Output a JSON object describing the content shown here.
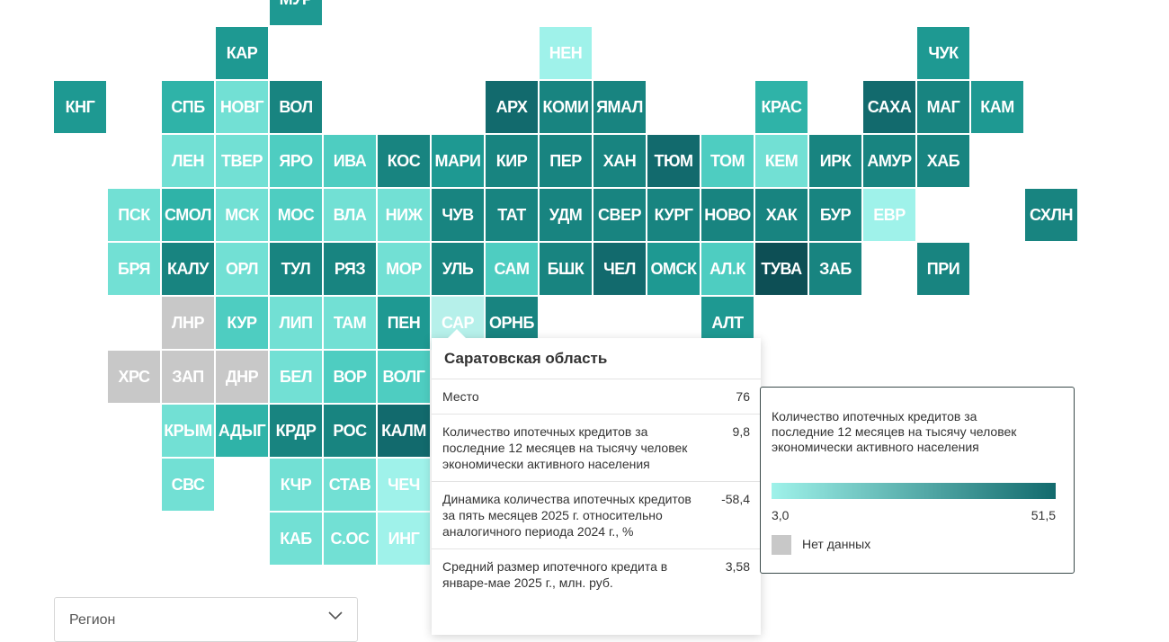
{
  "colors": {
    "bins": [
      "#9ff2ea",
      "#72e0d4",
      "#4ecdc1",
      "#2fb3a8",
      "#1e9992",
      "#188480",
      "#126a6d",
      "#0d4f55"
    ],
    "nodata": "#c8c8c8",
    "selected": "#b6f0ea"
  },
  "tiles": [
    {
      "label": "МУР",
      "col": 5,
      "row": -1,
      "bin": 4
    },
    {
      "label": "КАР",
      "col": 4,
      "row": 0,
      "bin": 4
    },
    {
      "label": "НЕН",
      "col": 10,
      "row": 0,
      "bin": 0
    },
    {
      "label": "ЧУК",
      "col": 17,
      "row": 0,
      "bin": 4
    },
    {
      "label": "КНГ",
      "col": 1,
      "row": 1,
      "bin": 4
    },
    {
      "label": "СПБ",
      "col": 3,
      "row": 1,
      "bin": 3
    },
    {
      "label": "НОВГ",
      "col": 4,
      "row": 1,
      "bin": 1
    },
    {
      "label": "ВОЛ",
      "col": 5,
      "row": 1,
      "bin": 5
    },
    {
      "label": "АРХ",
      "col": 9,
      "row": 1,
      "bin": 6
    },
    {
      "label": "КОМИ",
      "col": 10,
      "row": 1,
      "bin": 5
    },
    {
      "label": "ЯМАЛ",
      "col": 11,
      "row": 1,
      "bin": 5
    },
    {
      "label": "КРАС",
      "col": 14,
      "row": 1,
      "bin": 3
    },
    {
      "label": "САХА",
      "col": 16,
      "row": 1,
      "bin": 6
    },
    {
      "label": "МАГ",
      "col": 17,
      "row": 1,
      "bin": 5
    },
    {
      "label": "КАМ",
      "col": 18,
      "row": 1,
      "bin": 4
    },
    {
      "label": "ЛЕН",
      "col": 3,
      "row": 2,
      "bin": 1
    },
    {
      "label": "ТВЕР",
      "col": 4,
      "row": 2,
      "bin": 1
    },
    {
      "label": "ЯРО",
      "col": 5,
      "row": 2,
      "bin": 2
    },
    {
      "label": "ИВА",
      "col": 6,
      "row": 2,
      "bin": 2
    },
    {
      "label": "КОС",
      "col": 7,
      "row": 2,
      "bin": 5
    },
    {
      "label": "МАРИ",
      "col": 8,
      "row": 2,
      "bin": 4
    },
    {
      "label": "КИР",
      "col": 9,
      "row": 2,
      "bin": 5
    },
    {
      "label": "ПЕР",
      "col": 10,
      "row": 2,
      "bin": 5
    },
    {
      "label": "ХАН",
      "col": 11,
      "row": 2,
      "bin": 5
    },
    {
      "label": "ТЮМ",
      "col": 12,
      "row": 2,
      "bin": 6
    },
    {
      "label": "ТОМ",
      "col": 13,
      "row": 2,
      "bin": 2
    },
    {
      "label": "КЕМ",
      "col": 14,
      "row": 2,
      "bin": 1
    },
    {
      "label": "ИРК",
      "col": 15,
      "row": 2,
      "bin": 5
    },
    {
      "label": "АМУР",
      "col": 16,
      "row": 2,
      "bin": 5
    },
    {
      "label": "ХАБ",
      "col": 17,
      "row": 2,
      "bin": 5
    },
    {
      "label": "ПСК",
      "col": 2,
      "row": 3,
      "bin": 1
    },
    {
      "label": "СМОЛ",
      "col": 3,
      "row": 3,
      "bin": 3
    },
    {
      "label": "МСК",
      "col": 4,
      "row": 3,
      "bin": 1
    },
    {
      "label": "МОС",
      "col": 5,
      "row": 3,
      "bin": 2
    },
    {
      "label": "ВЛА",
      "col": 6,
      "row": 3,
      "bin": 1
    },
    {
      "label": "НИЖ",
      "col": 7,
      "row": 3,
      "bin": 1
    },
    {
      "label": "ЧУВ",
      "col": 8,
      "row": 3,
      "bin": 5
    },
    {
      "label": "ТАТ",
      "col": 9,
      "row": 3,
      "bin": 5
    },
    {
      "label": "УДМ",
      "col": 10,
      "row": 3,
      "bin": 5
    },
    {
      "label": "СВЕР",
      "col": 11,
      "row": 3,
      "bin": 5
    },
    {
      "label": "КУРГ",
      "col": 12,
      "row": 3,
      "bin": 5
    },
    {
      "label": "НОВО",
      "col": 13,
      "row": 3,
      "bin": 5
    },
    {
      "label": "ХАК",
      "col": 14,
      "row": 3,
      "bin": 5
    },
    {
      "label": "БУР",
      "col": 15,
      "row": 3,
      "bin": 5
    },
    {
      "label": "ЕВР",
      "col": 16,
      "row": 3,
      "bin": 0
    },
    {
      "label": "СХЛН",
      "col": 19,
      "row": 3,
      "bin": 5
    },
    {
      "label": "БРЯ",
      "col": 2,
      "row": 4,
      "bin": 1
    },
    {
      "label": "КАЛУ",
      "col": 3,
      "row": 4,
      "bin": 5
    },
    {
      "label": "ОРЛ",
      "col": 4,
      "row": 4,
      "bin": 1
    },
    {
      "label": "ТУЛ",
      "col": 5,
      "row": 4,
      "bin": 5
    },
    {
      "label": "РЯЗ",
      "col": 6,
      "row": 4,
      "bin": 5
    },
    {
      "label": "МОР",
      "col": 7,
      "row": 4,
      "bin": 1
    },
    {
      "label": "УЛЬ",
      "col": 8,
      "row": 4,
      "bin": 5
    },
    {
      "label": "САМ",
      "col": 9,
      "row": 4,
      "bin": 2
    },
    {
      "label": "БШК",
      "col": 10,
      "row": 4,
      "bin": 5
    },
    {
      "label": "ЧЕЛ",
      "col": 11,
      "row": 4,
      "bin": 6
    },
    {
      "label": "ОМСК",
      "col": 12,
      "row": 4,
      "bin": 4
    },
    {
      "label": "АЛ.К",
      "col": 13,
      "row": 4,
      "bin": 2
    },
    {
      "label": "ТУВА",
      "col": 14,
      "row": 4,
      "bin": 7
    },
    {
      "label": "ЗАБ",
      "col": 15,
      "row": 4,
      "bin": 5
    },
    {
      "label": "ПРИ",
      "col": 17,
      "row": 4,
      "bin": 5
    },
    {
      "label": "ЛНР",
      "col": 3,
      "row": 5,
      "bin": -1
    },
    {
      "label": "КУР",
      "col": 4,
      "row": 5,
      "bin": 2
    },
    {
      "label": "ЛИП",
      "col": 5,
      "row": 5,
      "bin": 1
    },
    {
      "label": "ТАМ",
      "col": 6,
      "row": 5,
      "bin": 1
    },
    {
      "label": "ПЕН",
      "col": 7,
      "row": 5,
      "bin": 4
    },
    {
      "label": "САР",
      "col": 8,
      "row": 5,
      "bin": -2
    },
    {
      "label": "ОРНБ",
      "col": 9,
      "row": 5,
      "bin": 5
    },
    {
      "label": "АЛТ",
      "col": 13,
      "row": 5,
      "bin": 4
    },
    {
      "label": "ХРС",
      "col": 2,
      "row": 6,
      "bin": -1
    },
    {
      "label": "ЗАП",
      "col": 3,
      "row": 6,
      "bin": -1
    },
    {
      "label": "ДНР",
      "col": 4,
      "row": 6,
      "bin": -1
    },
    {
      "label": "БЕЛ",
      "col": 5,
      "row": 6,
      "bin": 1
    },
    {
      "label": "ВОР",
      "col": 6,
      "row": 6,
      "bin": 2
    },
    {
      "label": "ВОЛГ",
      "col": 7,
      "row": 6,
      "bin": 2
    },
    {
      "label": "КРЫМ",
      "col": 3,
      "row": 7,
      "bin": 1
    },
    {
      "label": "АДЫГ",
      "col": 4,
      "row": 7,
      "bin": 3
    },
    {
      "label": "КРДР",
      "col": 5,
      "row": 7,
      "bin": 5
    },
    {
      "label": "РОС",
      "col": 6,
      "row": 7,
      "bin": 5
    },
    {
      "label": "КАЛМ",
      "col": 7,
      "row": 7,
      "bin": 6
    },
    {
      "label": "СВС",
      "col": 3,
      "row": 8,
      "bin": 1
    },
    {
      "label": "КЧР",
      "col": 5,
      "row": 8,
      "bin": 1
    },
    {
      "label": "СТАВ",
      "col": 6,
      "row": 8,
      "bin": 1
    },
    {
      "label": "ЧЕЧ",
      "col": 7,
      "row": 8,
      "bin": 0
    },
    {
      "label": "КАБ",
      "col": 5,
      "row": 9,
      "bin": 1
    },
    {
      "label": "С.ОС",
      "col": 6,
      "row": 9,
      "bin": 1
    },
    {
      "label": "ИНГ",
      "col": 7,
      "row": 9,
      "bin": 0
    }
  ],
  "tooltip": {
    "title": "Саратовская область",
    "rows": [
      {
        "label": "Место",
        "value": "76"
      },
      {
        "label": "Количество ипотечных кредитов за последние 12 месяцев на тысячу человек экономически активного населения",
        "value": "9,8"
      },
      {
        "label": "Динамика количества ипотечных кредитов за пять месяцев 2025 г. относительно аналогичного периода 2024 г., %",
        "value": "-58,4"
      },
      {
        "label": "Средний размер ипотечного кредита в январе-мае 2025 г., млн. руб.",
        "value": "3,58"
      }
    ]
  },
  "legend": {
    "title": "Количество ипотечных кредитов за последние 12 месяцев на тысячу человек экономически активного населения",
    "min": "3,0",
    "max": "51,5",
    "nodata": "Нет данных"
  },
  "region_select": {
    "placeholder": "Регион"
  }
}
